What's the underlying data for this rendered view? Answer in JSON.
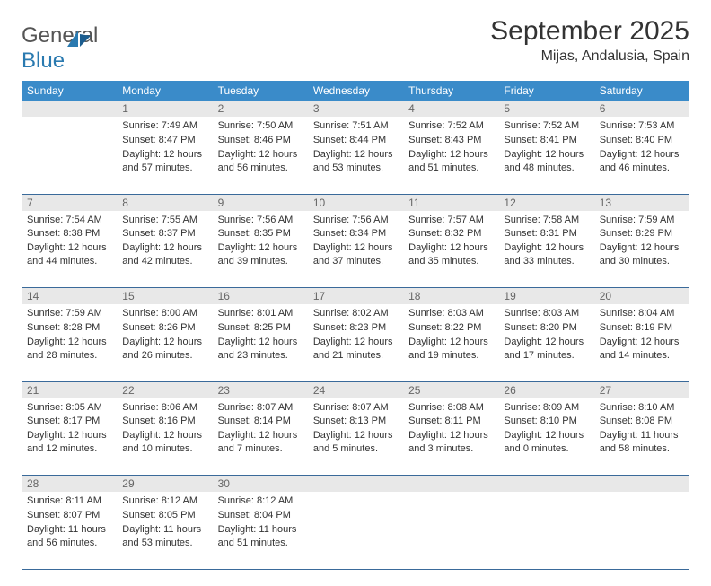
{
  "logo": {
    "top": "General",
    "bottom": "Blue"
  },
  "title": "September 2025",
  "location": "Mijas, Andalusia, Spain",
  "colors": {
    "header_bg": "#3a8bc9",
    "header_text": "#ffffff",
    "daynum_bg": "#e8e8e8",
    "daynum_text": "#666666",
    "cell_text": "#333333",
    "row_border": "#3a6a9a",
    "logo_blue": "#2a7ab0",
    "logo_gray": "#555555"
  },
  "weekdays": [
    "Sunday",
    "Monday",
    "Tuesday",
    "Wednesday",
    "Thursday",
    "Friday",
    "Saturday"
  ],
  "weeks": [
    {
      "days": [
        {
          "num": "",
          "sunrise": "",
          "sunset": "",
          "daylight": ""
        },
        {
          "num": "1",
          "sunrise": "Sunrise: 7:49 AM",
          "sunset": "Sunset: 8:47 PM",
          "daylight": "Daylight: 12 hours and 57 minutes."
        },
        {
          "num": "2",
          "sunrise": "Sunrise: 7:50 AM",
          "sunset": "Sunset: 8:46 PM",
          "daylight": "Daylight: 12 hours and 56 minutes."
        },
        {
          "num": "3",
          "sunrise": "Sunrise: 7:51 AM",
          "sunset": "Sunset: 8:44 PM",
          "daylight": "Daylight: 12 hours and 53 minutes."
        },
        {
          "num": "4",
          "sunrise": "Sunrise: 7:52 AM",
          "sunset": "Sunset: 8:43 PM",
          "daylight": "Daylight: 12 hours and 51 minutes."
        },
        {
          "num": "5",
          "sunrise": "Sunrise: 7:52 AM",
          "sunset": "Sunset: 8:41 PM",
          "daylight": "Daylight: 12 hours and 48 minutes."
        },
        {
          "num": "6",
          "sunrise": "Sunrise: 7:53 AM",
          "sunset": "Sunset: 8:40 PM",
          "daylight": "Daylight: 12 hours and 46 minutes."
        }
      ]
    },
    {
      "days": [
        {
          "num": "7",
          "sunrise": "Sunrise: 7:54 AM",
          "sunset": "Sunset: 8:38 PM",
          "daylight": "Daylight: 12 hours and 44 minutes."
        },
        {
          "num": "8",
          "sunrise": "Sunrise: 7:55 AM",
          "sunset": "Sunset: 8:37 PM",
          "daylight": "Daylight: 12 hours and 42 minutes."
        },
        {
          "num": "9",
          "sunrise": "Sunrise: 7:56 AM",
          "sunset": "Sunset: 8:35 PM",
          "daylight": "Daylight: 12 hours and 39 minutes."
        },
        {
          "num": "10",
          "sunrise": "Sunrise: 7:56 AM",
          "sunset": "Sunset: 8:34 PM",
          "daylight": "Daylight: 12 hours and 37 minutes."
        },
        {
          "num": "11",
          "sunrise": "Sunrise: 7:57 AM",
          "sunset": "Sunset: 8:32 PM",
          "daylight": "Daylight: 12 hours and 35 minutes."
        },
        {
          "num": "12",
          "sunrise": "Sunrise: 7:58 AM",
          "sunset": "Sunset: 8:31 PM",
          "daylight": "Daylight: 12 hours and 33 minutes."
        },
        {
          "num": "13",
          "sunrise": "Sunrise: 7:59 AM",
          "sunset": "Sunset: 8:29 PM",
          "daylight": "Daylight: 12 hours and 30 minutes."
        }
      ]
    },
    {
      "days": [
        {
          "num": "14",
          "sunrise": "Sunrise: 7:59 AM",
          "sunset": "Sunset: 8:28 PM",
          "daylight": "Daylight: 12 hours and 28 minutes."
        },
        {
          "num": "15",
          "sunrise": "Sunrise: 8:00 AM",
          "sunset": "Sunset: 8:26 PM",
          "daylight": "Daylight: 12 hours and 26 minutes."
        },
        {
          "num": "16",
          "sunrise": "Sunrise: 8:01 AM",
          "sunset": "Sunset: 8:25 PM",
          "daylight": "Daylight: 12 hours and 23 minutes."
        },
        {
          "num": "17",
          "sunrise": "Sunrise: 8:02 AM",
          "sunset": "Sunset: 8:23 PM",
          "daylight": "Daylight: 12 hours and 21 minutes."
        },
        {
          "num": "18",
          "sunrise": "Sunrise: 8:03 AM",
          "sunset": "Sunset: 8:22 PM",
          "daylight": "Daylight: 12 hours and 19 minutes."
        },
        {
          "num": "19",
          "sunrise": "Sunrise: 8:03 AM",
          "sunset": "Sunset: 8:20 PM",
          "daylight": "Daylight: 12 hours and 17 minutes."
        },
        {
          "num": "20",
          "sunrise": "Sunrise: 8:04 AM",
          "sunset": "Sunset: 8:19 PM",
          "daylight": "Daylight: 12 hours and 14 minutes."
        }
      ]
    },
    {
      "days": [
        {
          "num": "21",
          "sunrise": "Sunrise: 8:05 AM",
          "sunset": "Sunset: 8:17 PM",
          "daylight": "Daylight: 12 hours and 12 minutes."
        },
        {
          "num": "22",
          "sunrise": "Sunrise: 8:06 AM",
          "sunset": "Sunset: 8:16 PM",
          "daylight": "Daylight: 12 hours and 10 minutes."
        },
        {
          "num": "23",
          "sunrise": "Sunrise: 8:07 AM",
          "sunset": "Sunset: 8:14 PM",
          "daylight": "Daylight: 12 hours and 7 minutes."
        },
        {
          "num": "24",
          "sunrise": "Sunrise: 8:07 AM",
          "sunset": "Sunset: 8:13 PM",
          "daylight": "Daylight: 12 hours and 5 minutes."
        },
        {
          "num": "25",
          "sunrise": "Sunrise: 8:08 AM",
          "sunset": "Sunset: 8:11 PM",
          "daylight": "Daylight: 12 hours and 3 minutes."
        },
        {
          "num": "26",
          "sunrise": "Sunrise: 8:09 AM",
          "sunset": "Sunset: 8:10 PM",
          "daylight": "Daylight: 12 hours and 0 minutes."
        },
        {
          "num": "27",
          "sunrise": "Sunrise: 8:10 AM",
          "sunset": "Sunset: 8:08 PM",
          "daylight": "Daylight: 11 hours and 58 minutes."
        }
      ]
    },
    {
      "days": [
        {
          "num": "28",
          "sunrise": "Sunrise: 8:11 AM",
          "sunset": "Sunset: 8:07 PM",
          "daylight": "Daylight: 11 hours and 56 minutes."
        },
        {
          "num": "29",
          "sunrise": "Sunrise: 8:12 AM",
          "sunset": "Sunset: 8:05 PM",
          "daylight": "Daylight: 11 hours and 53 minutes."
        },
        {
          "num": "30",
          "sunrise": "Sunrise: 8:12 AM",
          "sunset": "Sunset: 8:04 PM",
          "daylight": "Daylight: 11 hours and 51 minutes."
        },
        {
          "num": "",
          "sunrise": "",
          "sunset": "",
          "daylight": ""
        },
        {
          "num": "",
          "sunrise": "",
          "sunset": "",
          "daylight": ""
        },
        {
          "num": "",
          "sunrise": "",
          "sunset": "",
          "daylight": ""
        },
        {
          "num": "",
          "sunrise": "",
          "sunset": "",
          "daylight": ""
        }
      ]
    }
  ]
}
